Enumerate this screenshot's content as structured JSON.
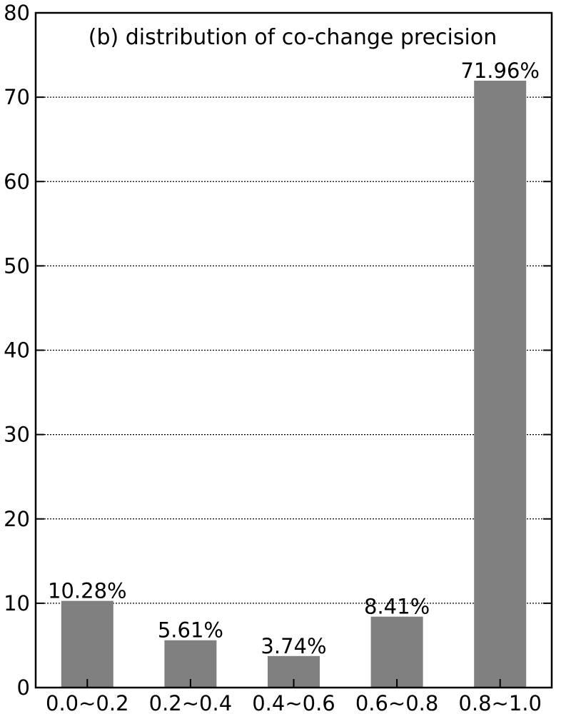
{
  "chart_data": {
    "type": "bar",
    "title": "(b) distribution of co-change precision",
    "categories": [
      "0.0~0.2",
      "0.2~0.4",
      "0.4~0.6",
      "0.6~0.8",
      "0.8~1.0"
    ],
    "values": [
      10.28,
      5.61,
      3.74,
      8.41,
      71.96
    ],
    "data_labels": [
      "10.28%",
      "5.61%",
      "3.74%",
      "8.41%",
      "71.96%"
    ],
    "xlabel": "",
    "ylabel": "",
    "ylim": [
      0,
      80
    ],
    "yticks": [
      0,
      10,
      20,
      30,
      40,
      50,
      60,
      70,
      80
    ],
    "grid": "horizontal dotted",
    "bar_color": "#808080"
  }
}
